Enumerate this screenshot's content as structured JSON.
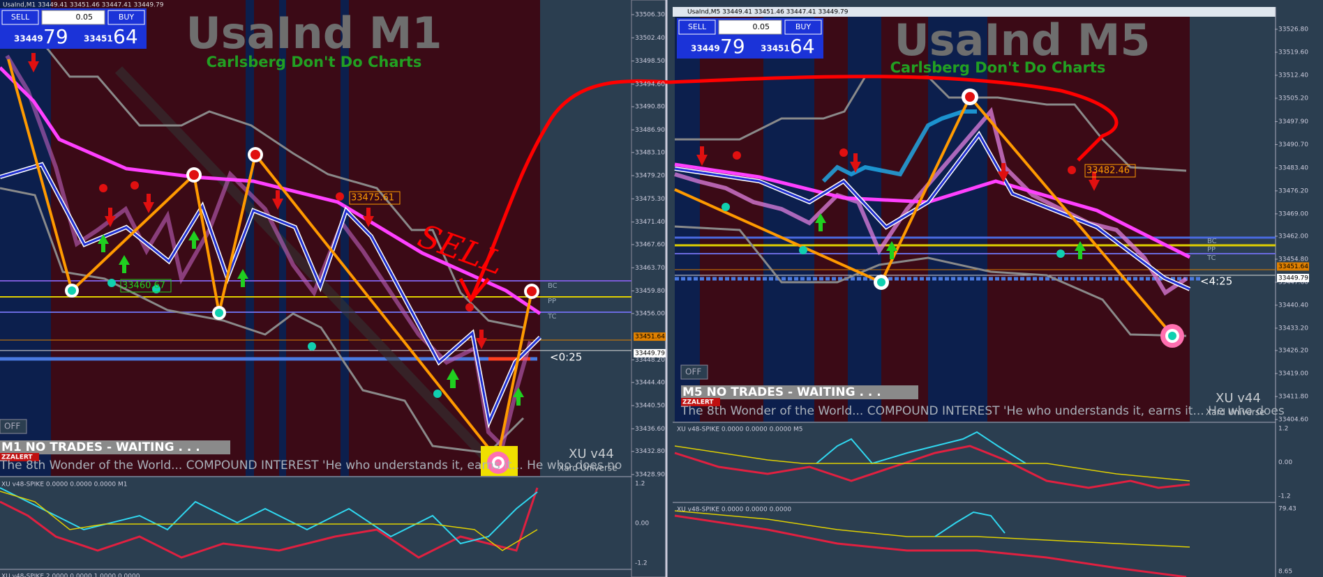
{
  "panels": [
    {
      "title_bar": "UsaInd,M1  33449.41 33451.46 33447.41 33449.79",
      "trade": {
        "sell": "SELL",
        "lot": "0.05",
        "buy": "BUY",
        "bid_main": "33449",
        "bid_big": "79",
        "ask_main": "33451",
        "ask_big": "64"
      },
      "symbol_title": "UsaInd M1",
      "slogan": "Carlsberg Don't Do Charts",
      "labels": [
        "33475.61",
        "33460.67"
      ],
      "pivots": [
        "BC",
        "PP",
        "TC"
      ],
      "timer": "<0:25",
      "off_button": "OFF",
      "status": "M1  NO TRADES - WAITING . . .",
      "ticker": "The 8th Wonder of the World...  COMPOUND INTEREST  'He who understands it, earns it... He who does no",
      "brand": "XU v44",
      "brand_sub": "Xard Universe",
      "alert": "ZZALERT",
      "price_axis": [
        "33506.30",
        "33502.40",
        "33498.50",
        "33494.60",
        "33490.80",
        "33486.90",
        "33483.10",
        "33479.20",
        "33475.30",
        "33471.40",
        "33467.60",
        "33463.70",
        "33459.80",
        "33456.00",
        "33448.20",
        "33444.40",
        "33440.50",
        "33436.60",
        "33432.80",
        "33428.90"
      ],
      "price_tags": [
        "33451.64",
        "33449.79"
      ],
      "indicators": [
        {
          "label": "XU v48-SPIKE 0.0000 0.0000 0.0000  M1",
          "axis": [
            "1.2",
            "0.00",
            "-1.2"
          ]
        },
        {
          "label": "XU v48-SPIKE 2.0000 0.0000 1.0000 0.0000",
          "axis": []
        }
      ]
    },
    {
      "title_bar": "UsaInd,M5  33449.41 33451.46 33447.41 33449.79",
      "trade": {
        "sell": "SELL",
        "lot": "0.05",
        "buy": "BUY",
        "bid_main": "33449",
        "bid_big": "79",
        "ask_main": "33451",
        "ask_big": "64"
      },
      "symbol_title": "UsaInd M5",
      "slogan": "Carlsberg Don't Do Charts",
      "labels": [
        "33482.46"
      ],
      "pivots": [
        "BC",
        "PP",
        "TC"
      ],
      "timer": "<4:25",
      "off_button": "OFF",
      "status": "M5  NO TRADES - WAITING . . .",
      "ticker": "The 8th Wonder of the World...  COMPOUND INTEREST  'He who understands it, earns it... He who does",
      "brand": "XU v44",
      "brand_sub": "Xard Universe",
      "alert": "ZZALERT",
      "price_axis": [
        "33526.80",
        "33519.60",
        "33512.40",
        "33505.20",
        "33497.90",
        "33490.70",
        "33483.40",
        "33476.20",
        "33469.00",
        "33462.00",
        "33454.80",
        "33447.60",
        "33440.40",
        "33433.20",
        "33426.20",
        "33419.00",
        "33411.80",
        "33404.60"
      ],
      "price_tags": [
        "33451.64",
        "33449.79"
      ],
      "indicators": [
        {
          "label": "XU v48-SPIKE 0.0000 0.0000 0.0000  M5",
          "axis": [
            "1.2",
            "0.00",
            "-1.2"
          ]
        },
        {
          "label": "XU v48-SPIKE 0.0000 0.0000 0.0000",
          "axis": [
            "79.43",
            "8.65"
          ]
        }
      ]
    }
  ],
  "annotation": "SELL"
}
